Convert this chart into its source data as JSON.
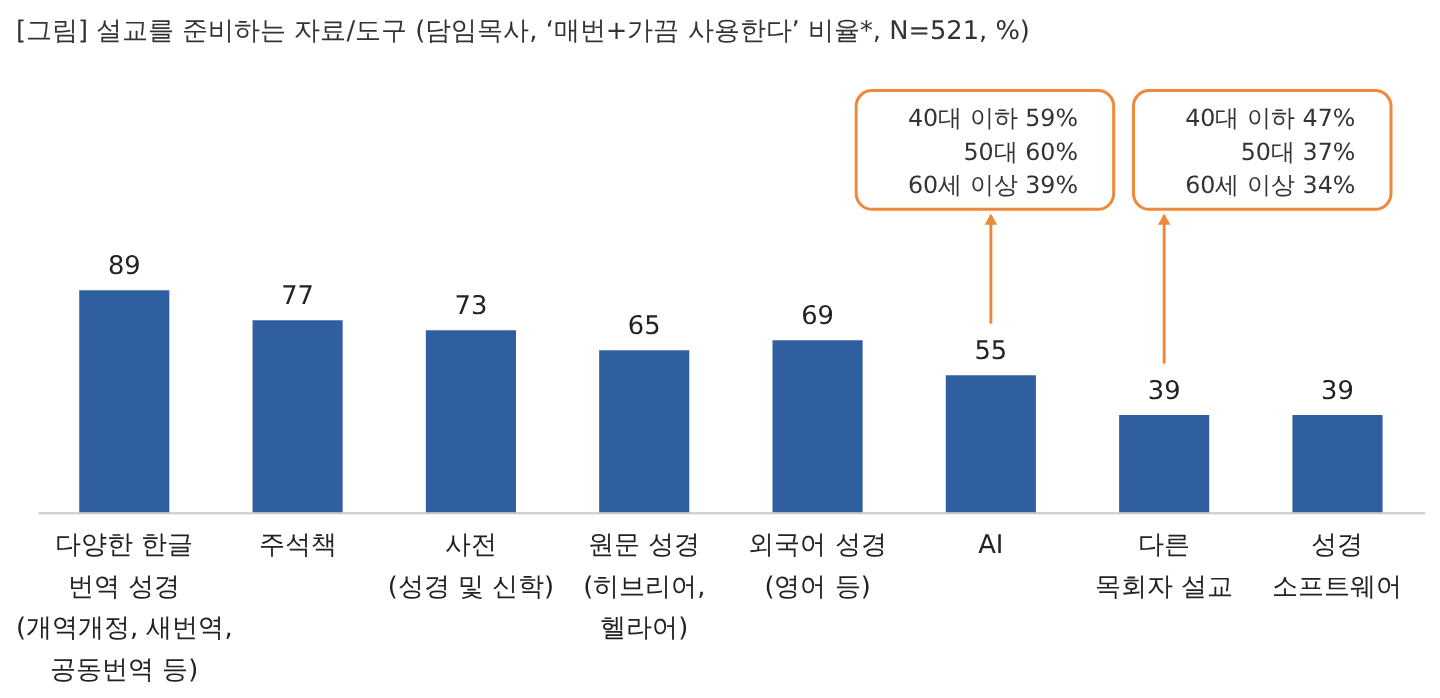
{
  "chart_data": {
    "type": "bar",
    "title": "[그림] 설교를 준비하는 자료/도구 (담임목사, ‘매번+가끔 사용한다’ 비율*, N=521, %)",
    "categories": [
      "다양한 한글\n번역 성경\n(개역개정, 새번역,\n공동번역 등)",
      "주석책",
      "사전\n(성경 및 신학)",
      "원문 성경\n(히브리어,\n헬라어)",
      "외국어 성경\n(영어 등)",
      "AI",
      "다른\n목회자 설교",
      "성경\n소프트웨어"
    ],
    "values": [
      89,
      77,
      73,
      65,
      69,
      55,
      39,
      39
    ],
    "color": "#2f5f9f",
    "data_labels": true,
    "annotations": [
      "40대 이하 59%",
      "50대 60%",
      "60세 이상 39%",
      "40대 이하 47%",
      "50대 37%",
      "60세 이상 34%"
    ]
  }
}
